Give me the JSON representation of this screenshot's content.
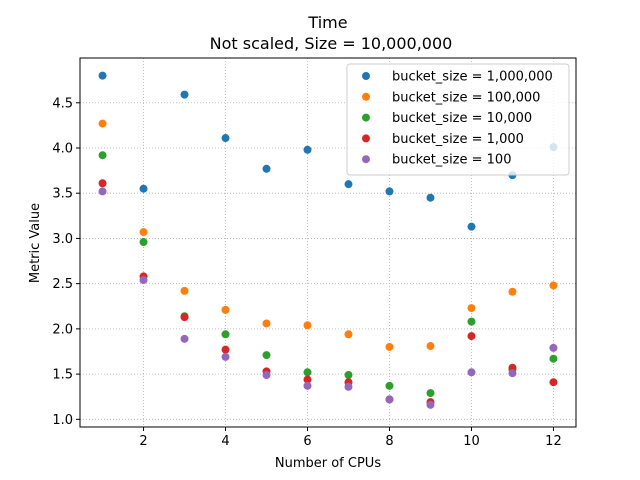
{
  "chart_data": {
    "type": "scatter",
    "title": "Time",
    "subtitle": "Not scaled, Size = 10,000,000",
    "xlabel": "Number of CPUs",
    "ylabel": "Metric Value",
    "xlim": [
      0.45,
      12.55
    ],
    "ylim": [
      0.915,
      4.995
    ],
    "xticks": [
      2,
      4,
      6,
      8,
      10,
      12
    ],
    "yticks": [
      1.0,
      1.5,
      2.0,
      2.5,
      3.0,
      3.5,
      4.0,
      4.5
    ],
    "ytick_labels": [
      "1.0",
      "1.5",
      "2.0",
      "2.5",
      "3.0",
      "3.5",
      "4.0",
      "4.5"
    ],
    "grid": true,
    "legend_position": "top-right",
    "x": [
      1,
      2,
      3,
      4,
      5,
      6,
      7,
      8,
      9,
      10,
      11,
      12
    ],
    "series": [
      {
        "name": "bucket_size = 1,000,000",
        "color": "#1f77b4",
        "values": [
          4.8,
          3.55,
          4.59,
          4.11,
          3.77,
          3.98,
          3.6,
          3.52,
          3.45,
          3.13,
          3.7,
          4.01
        ]
      },
      {
        "name": "bucket_size = 100,000",
        "color": "#ff7f0e",
        "values": [
          4.27,
          3.07,
          2.42,
          2.21,
          2.06,
          2.04,
          1.94,
          1.8,
          1.81,
          2.23,
          2.41,
          2.48
        ]
      },
      {
        "name": "bucket_size = 10,000",
        "color": "#2ca02c",
        "values": [
          3.92,
          2.96,
          2.14,
          1.94,
          1.71,
          1.52,
          1.49,
          1.37,
          1.29,
          2.08,
          1.55,
          1.67
        ]
      },
      {
        "name": "bucket_size = 1,000",
        "color": "#d62728",
        "values": [
          3.61,
          2.58,
          2.13,
          1.77,
          1.53,
          1.44,
          1.41,
          1.22,
          1.19,
          1.92,
          1.57,
          1.41
        ]
      },
      {
        "name": "bucket_size = 100",
        "color": "#9467bd",
        "values": [
          3.52,
          2.54,
          1.89,
          1.69,
          1.49,
          1.37,
          1.36,
          1.22,
          1.16,
          1.52,
          1.51,
          1.79
        ]
      }
    ]
  }
}
